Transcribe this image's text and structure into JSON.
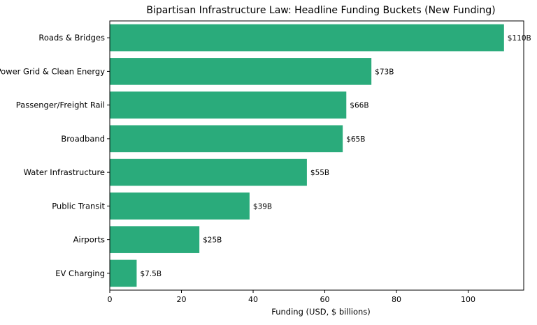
{
  "chart_data": {
    "type": "bar",
    "orientation": "horizontal",
    "title": "Bipartisan Infrastructure Law: Headline Funding Buckets (New Funding)",
    "xlabel": "Funding (USD, $ billions)",
    "ylabel": "",
    "xlim": [
      0,
      115.5
    ],
    "xticks": [
      0,
      20,
      40,
      60,
      80,
      100
    ],
    "grid": false,
    "legend": "none",
    "bar_color": "#2aab7b",
    "categories": [
      "Roads & Bridges",
      "Power Grid & Clean Energy",
      "Passenger/Freight Rail",
      "Broadband",
      "Water Infrastructure",
      "Public Transit",
      "Airports",
      "EV Charging"
    ],
    "values": [
      110,
      73,
      66,
      65,
      55,
      39,
      25,
      7.5
    ],
    "data_labels": [
      "$110B",
      "$73B",
      "$66B",
      "$65B",
      "$55B",
      "$39B",
      "$25B",
      "$7.5B"
    ]
  }
}
